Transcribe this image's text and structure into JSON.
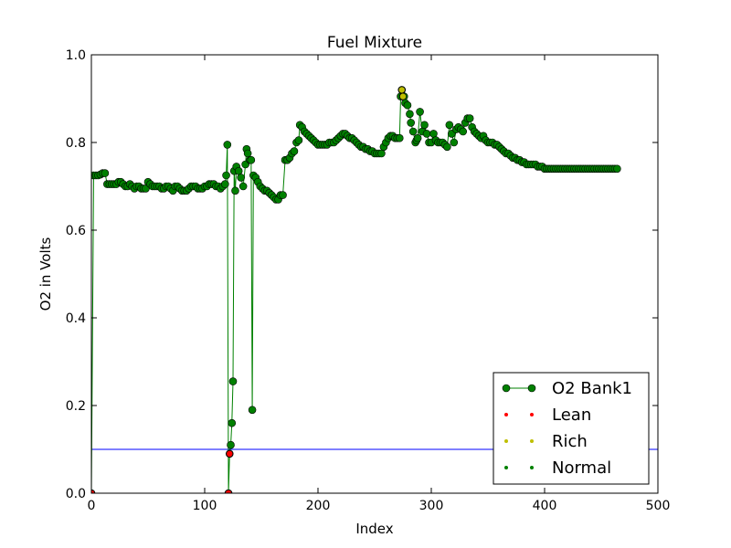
{
  "chart_data": {
    "type": "line",
    "title": "Fuel Mixture",
    "xlabel": "Index",
    "ylabel": "O2 in Volts",
    "xlim": [
      0,
      500
    ],
    "ylim": [
      0,
      1.0
    ],
    "xticks": [
      0,
      100,
      200,
      300,
      400,
      500
    ],
    "yticks": [
      0.0,
      0.2,
      0.4,
      0.6,
      0.8,
      1.0
    ],
    "xtick_labels": [
      "0",
      "100",
      "200",
      "300",
      "400",
      "500"
    ],
    "ytick_labels": [
      "0.0",
      "0.2",
      "0.4",
      "0.6",
      "0.8",
      "1.0"
    ],
    "grid": false,
    "legend_position": "lower-right",
    "series": [
      {
        "name": "O2 Bank1",
        "style": "line-with-markers",
        "color": "#008000",
        "points": [
          [
            0,
            0.0
          ],
          [
            2,
            0.725
          ],
          [
            4,
            0.725
          ],
          [
            6,
            0.725
          ],
          [
            8,
            0.727
          ],
          [
            10,
            0.73
          ],
          [
            12,
            0.73
          ],
          [
            14,
            0.705
          ],
          [
            16,
            0.705
          ],
          [
            18,
            0.705
          ],
          [
            20,
            0.705
          ],
          [
            22,
            0.705
          ],
          [
            24,
            0.71
          ],
          [
            26,
            0.71
          ],
          [
            28,
            0.705
          ],
          [
            30,
            0.7
          ],
          [
            32,
            0.7
          ],
          [
            34,
            0.705
          ],
          [
            36,
            0.7
          ],
          [
            38,
            0.695
          ],
          [
            40,
            0.7
          ],
          [
            42,
            0.7
          ],
          [
            44,
            0.695
          ],
          [
            46,
            0.695
          ],
          [
            48,
            0.695
          ],
          [
            50,
            0.71
          ],
          [
            52,
            0.705
          ],
          [
            54,
            0.7
          ],
          [
            56,
            0.7
          ],
          [
            58,
            0.7
          ],
          [
            60,
            0.7
          ],
          [
            62,
            0.695
          ],
          [
            64,
            0.695
          ],
          [
            66,
            0.7
          ],
          [
            68,
            0.7
          ],
          [
            70,
            0.695
          ],
          [
            72,
            0.69
          ],
          [
            74,
            0.7
          ],
          [
            76,
            0.7
          ],
          [
            78,
            0.695
          ],
          [
            80,
            0.69
          ],
          [
            82,
            0.69
          ],
          [
            84,
            0.69
          ],
          [
            86,
            0.695
          ],
          [
            88,
            0.7
          ],
          [
            90,
            0.7
          ],
          [
            92,
            0.7
          ],
          [
            94,
            0.695
          ],
          [
            96,
            0.695
          ],
          [
            98,
            0.695
          ],
          [
            100,
            0.7
          ],
          [
            102,
            0.7
          ],
          [
            104,
            0.705
          ],
          [
            106,
            0.705
          ],
          [
            108,
            0.705
          ],
          [
            110,
            0.7
          ],
          [
            112,
            0.7
          ],
          [
            114,
            0.695
          ],
          [
            116,
            0.7
          ],
          [
            118,
            0.705
          ],
          [
            119,
            0.725
          ],
          [
            120,
            0.795
          ],
          [
            121,
            0.0
          ],
          [
            122,
            0.09
          ],
          [
            123,
            0.11
          ],
          [
            124,
            0.16
          ],
          [
            125,
            0.255
          ],
          [
            126,
            0.735
          ],
          [
            127,
            0.69
          ],
          [
            128,
            0.745
          ],
          [
            130,
            0.735
          ],
          [
            132,
            0.72
          ],
          [
            134,
            0.7
          ],
          [
            136,
            0.75
          ],
          [
            137,
            0.785
          ],
          [
            138,
            0.775
          ],
          [
            140,
            0.76
          ],
          [
            141,
            0.76
          ],
          [
            142,
            0.19
          ],
          [
            143,
            0.725
          ],
          [
            145,
            0.72
          ],
          [
            147,
            0.71
          ],
          [
            149,
            0.7
          ],
          [
            151,
            0.695
          ],
          [
            153,
            0.69
          ],
          [
            155,
            0.69
          ],
          [
            157,
            0.685
          ],
          [
            159,
            0.68
          ],
          [
            161,
            0.675
          ],
          [
            163,
            0.67
          ],
          [
            165,
            0.67
          ],
          [
            167,
            0.68
          ],
          [
            169,
            0.68
          ],
          [
            171,
            0.76
          ],
          [
            173,
            0.76
          ],
          [
            175,
            0.765
          ],
          [
            177,
            0.775
          ],
          [
            179,
            0.78
          ],
          [
            181,
            0.8
          ],
          [
            183,
            0.805
          ],
          [
            184,
            0.84
          ],
          [
            186,
            0.835
          ],
          [
            188,
            0.825
          ],
          [
            190,
            0.82
          ],
          [
            192,
            0.815
          ],
          [
            194,
            0.81
          ],
          [
            196,
            0.805
          ],
          [
            198,
            0.8
          ],
          [
            200,
            0.795
          ],
          [
            202,
            0.795
          ],
          [
            204,
            0.795
          ],
          [
            206,
            0.795
          ],
          [
            208,
            0.795
          ],
          [
            210,
            0.8
          ],
          [
            212,
            0.8
          ],
          [
            214,
            0.8
          ],
          [
            216,
            0.805
          ],
          [
            218,
            0.81
          ],
          [
            220,
            0.815
          ],
          [
            222,
            0.82
          ],
          [
            224,
            0.82
          ],
          [
            226,
            0.815
          ],
          [
            228,
            0.81
          ],
          [
            230,
            0.81
          ],
          [
            232,
            0.805
          ],
          [
            234,
            0.8
          ],
          [
            236,
            0.795
          ],
          [
            238,
            0.79
          ],
          [
            240,
            0.79
          ],
          [
            242,
            0.785
          ],
          [
            244,
            0.785
          ],
          [
            246,
            0.78
          ],
          [
            248,
            0.78
          ],
          [
            250,
            0.775
          ],
          [
            252,
            0.775
          ],
          [
            254,
            0.775
          ],
          [
            256,
            0.775
          ],
          [
            258,
            0.79
          ],
          [
            260,
            0.8
          ],
          [
            262,
            0.81
          ],
          [
            264,
            0.815
          ],
          [
            266,
            0.815
          ],
          [
            268,
            0.81
          ],
          [
            270,
            0.81
          ],
          [
            272,
            0.81
          ],
          [
            273,
            0.905
          ],
          [
            274,
            0.92
          ],
          [
            275,
            0.905
          ],
          [
            276,
            0.905
          ],
          [
            277,
            0.89
          ],
          [
            279,
            0.885
          ],
          [
            281,
            0.865
          ],
          [
            282,
            0.845
          ],
          [
            284,
            0.825
          ],
          [
            286,
            0.8
          ],
          [
            287,
            0.805
          ],
          [
            288,
            0.81
          ],
          [
            290,
            0.87
          ],
          [
            292,
            0.825
          ],
          [
            294,
            0.84
          ],
          [
            296,
            0.82
          ],
          [
            298,
            0.8
          ],
          [
            300,
            0.8
          ],
          [
            302,
            0.82
          ],
          [
            304,
            0.805
          ],
          [
            306,
            0.8
          ],
          [
            308,
            0.8
          ],
          [
            310,
            0.8
          ],
          [
            312,
            0.795
          ],
          [
            314,
            0.79
          ],
          [
            316,
            0.84
          ],
          [
            318,
            0.82
          ],
          [
            320,
            0.8
          ],
          [
            322,
            0.83
          ],
          [
            324,
            0.835
          ],
          [
            326,
            0.83
          ],
          [
            328,
            0.825
          ],
          [
            330,
            0.845
          ],
          [
            332,
            0.855
          ],
          [
            334,
            0.855
          ],
          [
            336,
            0.835
          ],
          [
            338,
            0.825
          ],
          [
            340,
            0.82
          ],
          [
            342,
            0.815
          ],
          [
            344,
            0.81
          ],
          [
            346,
            0.815
          ],
          [
            348,
            0.805
          ],
          [
            350,
            0.8
          ],
          [
            352,
            0.8
          ],
          [
            354,
            0.8
          ],
          [
            356,
            0.795
          ],
          [
            358,
            0.795
          ],
          [
            360,
            0.79
          ],
          [
            362,
            0.785
          ],
          [
            364,
            0.78
          ],
          [
            366,
            0.775
          ],
          [
            368,
            0.775
          ],
          [
            370,
            0.77
          ],
          [
            372,
            0.765
          ],
          [
            374,
            0.765
          ],
          [
            376,
            0.76
          ],
          [
            378,
            0.76
          ],
          [
            380,
            0.755
          ],
          [
            382,
            0.755
          ],
          [
            384,
            0.75
          ],
          [
            386,
            0.75
          ],
          [
            388,
            0.75
          ],
          [
            390,
            0.75
          ],
          [
            392,
            0.75
          ],
          [
            394,
            0.745
          ],
          [
            396,
            0.745
          ],
          [
            398,
            0.745
          ],
          [
            400,
            0.74
          ],
          [
            402,
            0.74
          ],
          [
            404,
            0.74
          ],
          [
            406,
            0.74
          ],
          [
            408,
            0.74
          ],
          [
            410,
            0.74
          ],
          [
            412,
            0.74
          ],
          [
            414,
            0.74
          ],
          [
            416,
            0.74
          ],
          [
            418,
            0.74
          ],
          [
            420,
            0.74
          ],
          [
            422,
            0.74
          ],
          [
            424,
            0.74
          ],
          [
            426,
            0.74
          ],
          [
            428,
            0.74
          ],
          [
            430,
            0.74
          ],
          [
            432,
            0.74
          ],
          [
            434,
            0.74
          ],
          [
            436,
            0.74
          ],
          [
            438,
            0.74
          ],
          [
            440,
            0.74
          ],
          [
            442,
            0.74
          ],
          [
            444,
            0.74
          ],
          [
            446,
            0.74
          ],
          [
            448,
            0.74
          ],
          [
            450,
            0.74
          ],
          [
            452,
            0.74
          ],
          [
            454,
            0.74
          ],
          [
            456,
            0.74
          ],
          [
            458,
            0.74
          ],
          [
            460,
            0.74
          ],
          [
            462,
            0.74
          ],
          [
            464,
            0.74
          ]
        ]
      },
      {
        "name": "Lean",
        "style": "markers",
        "color": "#ff0000",
        "points": [
          [
            0,
            0.0
          ],
          [
            121,
            0.0
          ],
          [
            122,
            0.09
          ]
        ]
      },
      {
        "name": "Rich",
        "style": "markers",
        "color": "#bfbf00",
        "points": [
          [
            274,
            0.92
          ],
          [
            275,
            0.905
          ]
        ]
      },
      {
        "name": "Normal",
        "style": "markers",
        "color": "#008000",
        "points": []
      }
    ],
    "reference_lines": [
      {
        "y": 0.1,
        "x_start": 0,
        "x_end": 500,
        "color": "#0000ff"
      }
    ]
  }
}
